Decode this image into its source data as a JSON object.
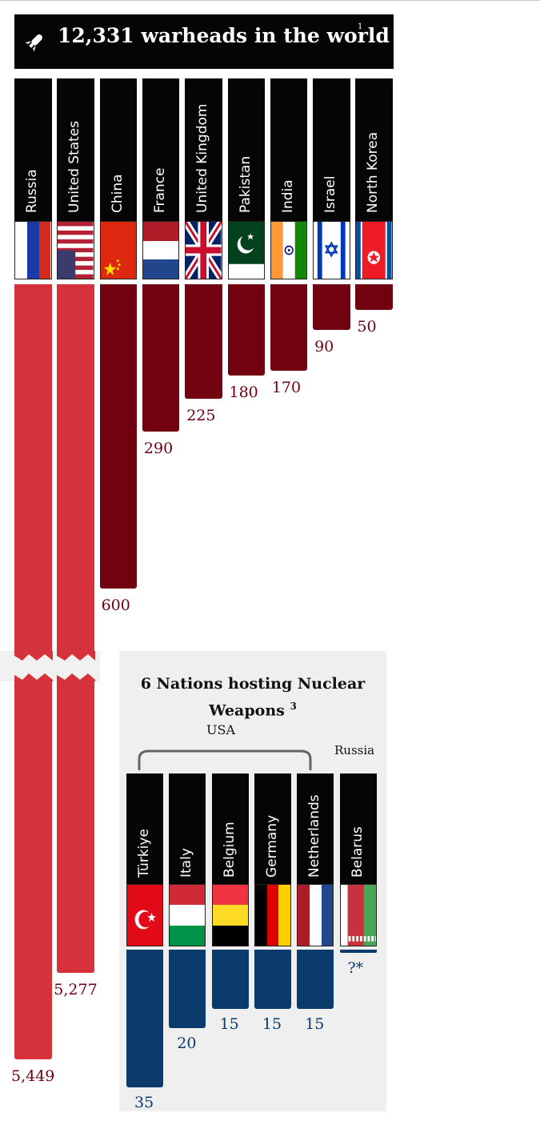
{
  "title": {
    "icon": "missile-icon",
    "text": "12,331 warheads in the world",
    "footnote": "1"
  },
  "chart_data": {
    "type": "bar",
    "title": "12,331 warheads in the world",
    "categories": [
      "Russia",
      "United States",
      "China",
      "France",
      "United Kingdom",
      "Pakistan",
      "India",
      "Israel",
      "North Korea"
    ],
    "values": [
      5449,
      5277,
      600,
      290,
      225,
      180,
      170,
      90,
      50
    ],
    "value_labels": [
      "5,449",
      "5,277",
      "600",
      "290",
      "225",
      "180",
      "170",
      "90",
      "50"
    ],
    "axis_break": true,
    "colors": {
      "major": "#d5323c",
      "minor": "#720210",
      "label": "#6e0010"
    }
  },
  "hosting": {
    "title": "6 Nations hosting Nuclear Weapons",
    "footnote": "3",
    "usa_label": "USA",
    "russia_label": "Russia",
    "chart_data": {
      "type": "bar",
      "title": "6 Nations hosting Nuclear Weapons",
      "categories": [
        "Türkiye",
        "Italy",
        "Belgium",
        "Germany",
        "Netherlands",
        "Belarus"
      ],
      "values": [
        35,
        20,
        15,
        15,
        15,
        null
      ],
      "value_labels": [
        "35",
        "20",
        "15",
        "15",
        "15",
        "?*"
      ],
      "hosted_by": [
        "USA",
        "USA",
        "USA",
        "USA",
        "USA",
        "Russia"
      ],
      "colors": {
        "bar": "#0b3a6c",
        "label": "#0b3a6c"
      }
    }
  }
}
